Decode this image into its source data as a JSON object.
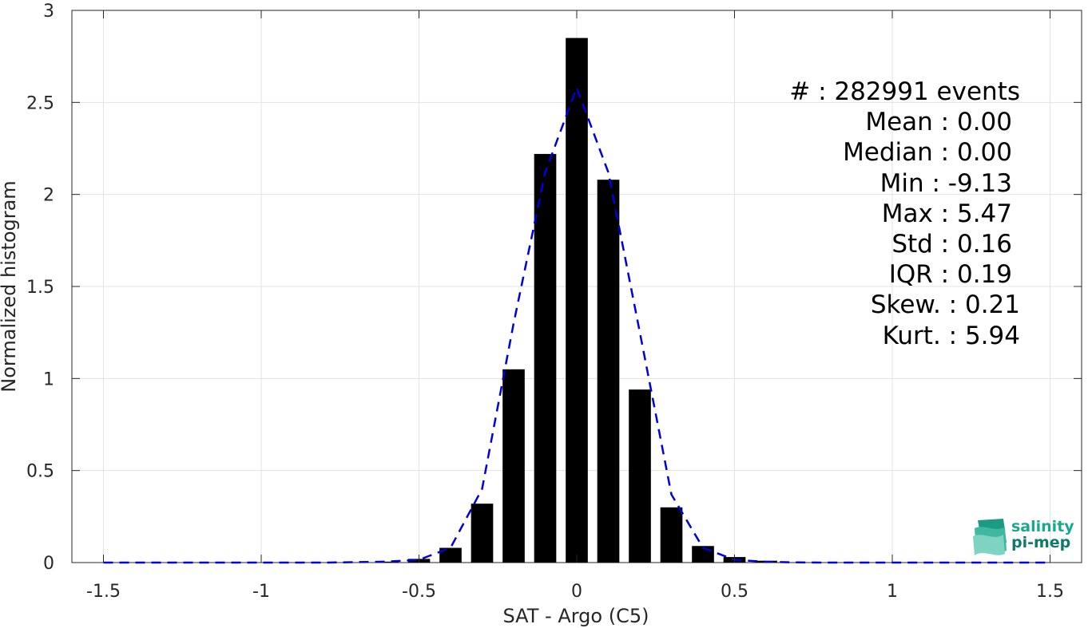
{
  "chart_data": {
    "type": "bar",
    "xlabel": "SAT - Argo (C5)",
    "ylabel": "Normalized histogram",
    "xlim": [
      -1.6,
      1.6
    ],
    "ylim": [
      0,
      3
    ],
    "xticks": [
      -1.5,
      -1,
      -0.5,
      0,
      0.5,
      1,
      1.5
    ],
    "xtick_labels": [
      "-1.5",
      "-1",
      "-0.5",
      "0",
      "0.5",
      "1",
      "1.5"
    ],
    "yticks": [
      0,
      0.5,
      1,
      1.5,
      2,
      2.5,
      3
    ],
    "ytick_labels": [
      "0",
      "0.5",
      "1",
      "1.5",
      "2",
      "2.5",
      "3"
    ],
    "grid": true,
    "bar_color": "#000000",
    "bar_width": 0.07,
    "bars": [
      {
        "x": -0.6,
        "y": 0.005
      },
      {
        "x": -0.5,
        "y": 0.02
      },
      {
        "x": -0.4,
        "y": 0.08
      },
      {
        "x": -0.3,
        "y": 0.32
      },
      {
        "x": -0.2,
        "y": 1.05
      },
      {
        "x": -0.1,
        "y": 2.22
      },
      {
        "x": 0.0,
        "y": 2.85
      },
      {
        "x": 0.1,
        "y": 2.08
      },
      {
        "x": 0.2,
        "y": 0.94
      },
      {
        "x": 0.3,
        "y": 0.3
      },
      {
        "x": 0.4,
        "y": 0.09
      },
      {
        "x": 0.5,
        "y": 0.03
      },
      {
        "x": 0.6,
        "y": 0.01
      }
    ],
    "fit_line": {
      "style": "dashed",
      "color": "#0000dd",
      "x": [
        -1.5,
        -1.4,
        -1.3,
        -1.2,
        -1.1,
        -1.0,
        -0.9,
        -0.8,
        -0.7,
        -0.6,
        -0.5,
        -0.4,
        -0.3,
        -0.2,
        -0.1,
        0.0,
        0.1,
        0.2,
        0.3,
        0.4,
        0.5,
        0.6,
        0.7,
        0.8,
        0.9,
        1.0,
        1.1,
        1.2,
        1.3,
        1.4,
        1.5
      ],
      "y": [
        0,
        0,
        0,
        0,
        0,
        0,
        0,
        0,
        0.002,
        0.005,
        0.015,
        0.08,
        0.4,
        1.3,
        2.12,
        2.58,
        2.12,
        1.25,
        0.37,
        0.08,
        0.015,
        0.004,
        0.001,
        0,
        0,
        0,
        0,
        0,
        0,
        0,
        0
      ]
    },
    "stats": {
      "count": "#  : 282991 events",
      "mean": "Mean : 0.00",
      "median": "Median : 0.00",
      "min": "Min : -9.13",
      "max": "Max : 5.47",
      "std": "Std : 0.16",
      "iqr": "IQR : 0.19",
      "skew": "Skew. : 0.21",
      "kurt": "Kurt. : 5.94"
    }
  },
  "logo": {
    "line1": "salinity",
    "line2": "pi-mep",
    "color1": "#1aa88f",
    "color2": "#0f7a68"
  }
}
